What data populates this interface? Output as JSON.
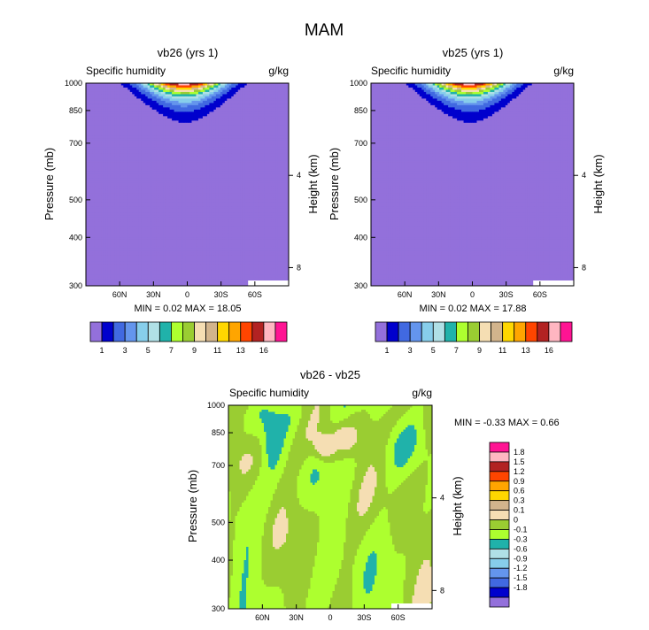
{
  "chart_data": {
    "type": "contour",
    "season_title": "MAM",
    "variable_label": "Specific humidity",
    "units": "g/kg",
    "x_ticks": [
      "60N",
      "30N",
      "0",
      "30S",
      "60S"
    ],
    "x_tick_lat": [
      60,
      30,
      0,
      -30,
      -60
    ],
    "xlim_lat": [
      90,
      -90
    ],
    "y_ticks": [
      "300",
      "400",
      "500",
      "700",
      "850",
      "1000"
    ],
    "y_tick_mb": [
      300,
      400,
      500,
      700,
      850,
      1000
    ],
    "ylim_mb": [
      1000,
      300
    ],
    "right_ticks": [
      "8",
      "4"
    ],
    "right_tick_km": [
      8,
      4
    ],
    "ylabel": "Pressure (mb)",
    "ylabel_right": "Height (km)",
    "panels": [
      {
        "title": "vb26 (yrs 1)",
        "stats": "MIN =   0.02   MAX =  18.05",
        "min": 0.02,
        "max": 18.05,
        "levels": [
          1,
          2,
          3,
          4,
          5,
          6,
          7,
          8,
          9,
          10,
          11,
          12,
          13,
          14,
          16
        ],
        "colorbar_labels": [
          "1",
          "3",
          "5",
          "7",
          "9",
          "11",
          "13",
          "16"
        ],
        "colors": [
          "#9370DB",
          "#0000CD",
          "#4169E1",
          "#6495ED",
          "#87CEEB",
          "#B0E0E6",
          "#20B2AA",
          "#ADFF2F",
          "#9ACD32",
          "#F5DEB3",
          "#D2B48C",
          "#FFD700",
          "#FFA500",
          "#FF4500",
          "#B22222",
          "#FFB6C1",
          "#FF1493"
        ]
      },
      {
        "title": "vb25 (yrs 1)",
        "stats": "MIN =   0.02   MAX =  17.88",
        "min": 0.02,
        "max": 17.88,
        "levels": [
          1,
          2,
          3,
          4,
          5,
          6,
          7,
          8,
          9,
          10,
          11,
          12,
          13,
          14,
          16
        ],
        "colorbar_labels": [
          "1",
          "3",
          "5",
          "7",
          "9",
          "11",
          "13",
          "16"
        ],
        "colors": [
          "#9370DB",
          "#0000CD",
          "#4169E1",
          "#6495ED",
          "#87CEEB",
          "#B0E0E6",
          "#20B2AA",
          "#ADFF2F",
          "#9ACD32",
          "#F5DEB3",
          "#D2B48C",
          "#FFD700",
          "#FFA500",
          "#FF4500",
          "#B22222",
          "#FFB6C1",
          "#FF1493"
        ]
      },
      {
        "title": "vb26 - vb25",
        "stats": "MIN =  -0.33   MAX =   0.66",
        "min": -0.33,
        "max": 0.66,
        "colorbar_labels": [
          "1.8",
          "1.5",
          "1.2",
          "0.9",
          "0.6",
          "0.3",
          "0.1",
          "0",
          "-0.1",
          "-0.3",
          "-0.6",
          "-0.9",
          "-1.2",
          "-1.5",
          "-1.8"
        ],
        "colors": [
          "#FF1493",
          "#FFB6C1",
          "#B22222",
          "#FF4500",
          "#FFA500",
          "#FFD700",
          "#D2B48C",
          "#F5DEB3",
          "#9ACD32",
          "#ADFF2F",
          "#20B2AA",
          "#B0E0E6",
          "#87CEEB",
          "#6495ED",
          "#4169E1",
          "#0000CD",
          "#9370DB"
        ]
      }
    ]
  }
}
